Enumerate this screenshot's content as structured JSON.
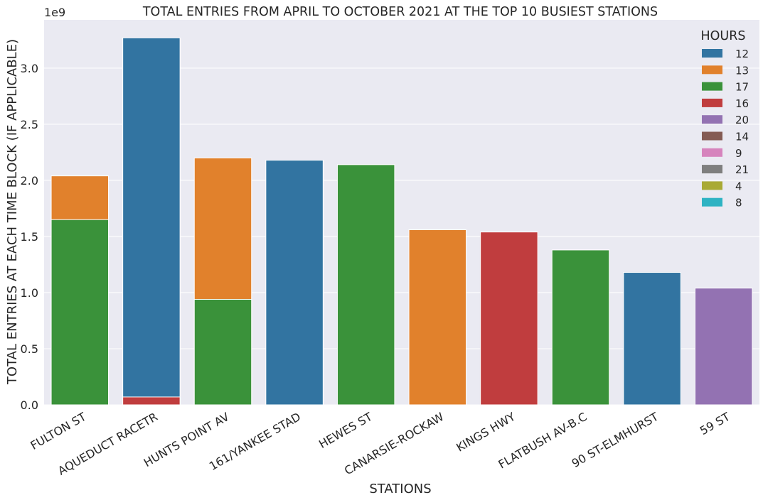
{
  "chart_data": {
    "type": "bar",
    "title": "TOTAL ENTRIES FROM APRIL TO OCTOBER 2021 AT THE TOP 10 BUSIEST STATIONS",
    "xlabel": "STATIONS",
    "ylabel": "TOTAL ENTRIES AT EACH TIME BLOCK (IF APPLICABLE)",
    "y_offset_text": "1e9",
    "ylim": [
      0,
      3.43
    ],
    "y_ticks": [
      0.0,
      0.5,
      1.0,
      1.5,
      2.0,
      2.5,
      3.0
    ],
    "y_tick_labels": [
      "0.0",
      "0.5",
      "1.0",
      "1.5",
      "2.0",
      "2.5",
      "3.0"
    ],
    "grid": true,
    "legend_position": "top-right",
    "categories": [
      "FULTON ST",
      "AQUEDUCT RACETR",
      "HUNTS POINT AV",
      "161/YANKEE STAD",
      "HEWES ST",
      "CANARSIE-ROCKAW",
      "KINGS HWY",
      "FLATBUSH AV-B.C",
      "90 ST-ELMHURST",
      "59 ST"
    ],
    "legend_title": "HOURS",
    "series": [
      {
        "name": "12",
        "color": "#3274a1",
        "values": [
          null,
          3.27,
          null,
          2.18,
          null,
          null,
          null,
          null,
          1.18,
          null
        ]
      },
      {
        "name": "13",
        "color": "#e1812c",
        "values": [
          2.04,
          null,
          2.2,
          null,
          null,
          1.56,
          null,
          null,
          null,
          null
        ]
      },
      {
        "name": "17",
        "color": "#3a923a",
        "values": [
          1.65,
          null,
          0.94,
          null,
          2.14,
          null,
          null,
          1.38,
          null,
          null
        ]
      },
      {
        "name": "16",
        "color": "#c03d3e",
        "values": [
          null,
          0.07,
          null,
          null,
          null,
          null,
          1.54,
          null,
          null,
          null
        ]
      },
      {
        "name": "20",
        "color": "#9372b2",
        "values": [
          null,
          null,
          null,
          null,
          null,
          null,
          null,
          null,
          null,
          1.04
        ]
      },
      {
        "name": "14",
        "color": "#845b53",
        "values": [
          null,
          null,
          null,
          null,
          null,
          null,
          null,
          null,
          null,
          null
        ]
      },
      {
        "name": "9",
        "color": "#d684bd",
        "values": [
          null,
          null,
          null,
          null,
          null,
          null,
          null,
          null,
          null,
          null
        ]
      },
      {
        "name": "21",
        "color": "#7f7f7f",
        "values": [
          null,
          null,
          null,
          null,
          null,
          null,
          null,
          null,
          null,
          null
        ]
      },
      {
        "name": "4",
        "color": "#a9aa35",
        "values": [
          null,
          null,
          null,
          null,
          null,
          null,
          null,
          null,
          null,
          null
        ]
      },
      {
        "name": "8",
        "color": "#2eb3c3",
        "values": [
          null,
          null,
          null,
          null,
          null,
          null,
          null,
          null,
          null,
          null
        ]
      }
    ],
    "draw_order": [
      "12",
      "13",
      "17",
      "16",
      "20"
    ]
  },
  "colors": {
    "plot_background": "#eaeaf2",
    "grid": "#ffffff",
    "text": "#262626"
  }
}
